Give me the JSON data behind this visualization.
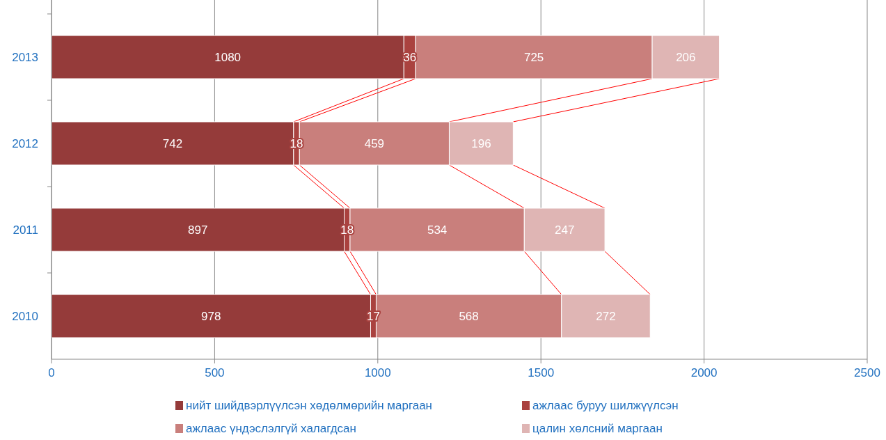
{
  "chart_data": {
    "type": "bar",
    "orientation": "horizontal",
    "stacked": true,
    "categories": [
      "2013",
      "2012",
      "2011",
      "2010"
    ],
    "series": [
      {
        "name": "нийт шийдвэрлүүлсэн хөдөлмөрийн маргаан",
        "color": "#953b3a",
        "values": [
          1080,
          742,
          897,
          978
        ]
      },
      {
        "name": "ажлаас буруу шилжүүлсэн",
        "color": "#aa423f",
        "values": [
          36,
          18,
          18,
          17
        ]
      },
      {
        "name": "ажлаас үндэслэлгүй халагдсан",
        "color": "#c97f7c",
        "values": [
          725,
          459,
          534,
          568
        ]
      },
      {
        "name": "цалин хөлсний маргаан",
        "color": "#dfb5b4",
        "values": [
          206,
          196,
          247,
          272
        ]
      }
    ],
    "xlim": [
      0,
      2500
    ],
    "xticks": [
      0,
      500,
      1000,
      1500,
      2000,
      2500
    ],
    "grid": "x",
    "legend": "bottom",
    "data_labels": true
  }
}
